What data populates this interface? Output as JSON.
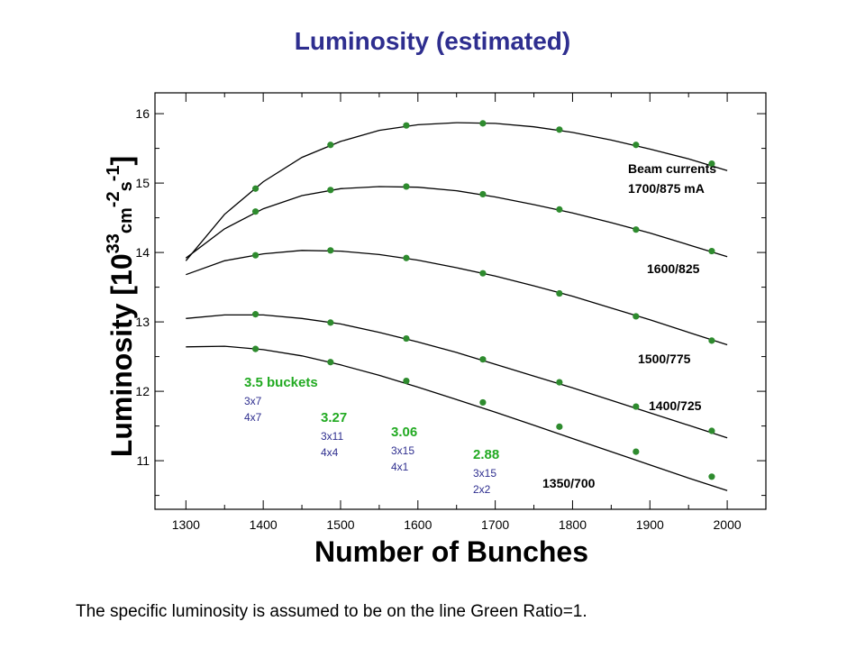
{
  "title": "Luminosity (estimated)",
  "footer": "The specific luminosity is assumed to be on the line Green Ratio=1.",
  "colors": {
    "title": "#2e2e8f",
    "point": "#2e8b2e",
    "curve": "#000000",
    "bucket_value": "#22aa22",
    "bucket_pattern": "#2e2e8f",
    "current_label": "#000000"
  },
  "chart_data": {
    "type": "line",
    "title": "Luminosity (estimated)",
    "xlabel": "Number of Bunches",
    "ylabel_parts": [
      "Luminosity [10",
      "33",
      "cm",
      "-2",
      "s",
      "-1",
      "]"
    ],
    "xlim": [
      1260,
      2050
    ],
    "ylim": [
      10.3,
      16.3
    ],
    "xticks": [
      1300,
      1400,
      1500,
      1600,
      1700,
      1800,
      1900,
      2000
    ],
    "yticks": [
      11,
      12,
      13,
      14,
      15,
      16
    ],
    "grid": false,
    "x": [
      1390,
      1487,
      1585,
      1684,
      1783,
      1882,
      1980
    ],
    "series": [
      {
        "name": "Beam currents 1700/875 mA",
        "values": [
          14.92,
          15.55,
          15.83,
          15.86,
          15.77,
          15.55,
          15.28
        ],
        "curve": [
          [
            1300,
            13.88
          ],
          [
            1350,
            14.55
          ],
          [
            1400,
            15.02
          ],
          [
            1450,
            15.37
          ],
          [
            1500,
            15.6
          ],
          [
            1550,
            15.76
          ],
          [
            1600,
            15.84
          ],
          [
            1650,
            15.87
          ],
          [
            1700,
            15.86
          ],
          [
            1750,
            15.81
          ],
          [
            1800,
            15.73
          ],
          [
            1850,
            15.62
          ],
          [
            1900,
            15.49
          ],
          [
            1950,
            15.35
          ],
          [
            2000,
            15.18
          ]
        ]
      },
      {
        "name": "1600/825",
        "values": [
          14.59,
          14.9,
          14.95,
          14.84,
          14.62,
          14.33,
          14.02
        ],
        "curve": [
          [
            1300,
            13.92
          ],
          [
            1350,
            14.34
          ],
          [
            1400,
            14.63
          ],
          [
            1450,
            14.82
          ],
          [
            1500,
            14.92
          ],
          [
            1550,
            14.95
          ],
          [
            1600,
            14.94
          ],
          [
            1650,
            14.89
          ],
          [
            1700,
            14.8
          ],
          [
            1750,
            14.69
          ],
          [
            1800,
            14.57
          ],
          [
            1850,
            14.43
          ],
          [
            1900,
            14.28
          ],
          [
            1950,
            14.11
          ],
          [
            2000,
            13.94
          ]
        ]
      },
      {
        "name": "1500/775",
        "values": [
          13.96,
          14.03,
          13.92,
          13.7,
          13.41,
          13.08,
          12.73
        ],
        "curve": [
          [
            1300,
            13.68
          ],
          [
            1350,
            13.88
          ],
          [
            1400,
            13.98
          ],
          [
            1450,
            14.03
          ],
          [
            1500,
            14.02
          ],
          [
            1550,
            13.97
          ],
          [
            1600,
            13.89
          ],
          [
            1650,
            13.78
          ],
          [
            1700,
            13.66
          ],
          [
            1750,
            13.52
          ],
          [
            1800,
            13.37
          ],
          [
            1850,
            13.2
          ],
          [
            1900,
            13.03
          ],
          [
            1950,
            12.85
          ],
          [
            2000,
            12.67
          ]
        ]
      },
      {
        "name": "1400/725",
        "values": [
          13.11,
          12.99,
          12.76,
          12.46,
          12.13,
          11.78,
          11.43
        ],
        "curve": [
          [
            1300,
            13.05
          ],
          [
            1350,
            13.1
          ],
          [
            1400,
            13.1
          ],
          [
            1450,
            13.05
          ],
          [
            1500,
            12.97
          ],
          [
            1550,
            12.85
          ],
          [
            1600,
            12.71
          ],
          [
            1650,
            12.56
          ],
          [
            1700,
            12.39
          ],
          [
            1750,
            12.22
          ],
          [
            1800,
            12.05
          ],
          [
            1850,
            11.87
          ],
          [
            1900,
            11.69
          ],
          [
            1950,
            11.51
          ],
          [
            2000,
            11.33
          ]
        ]
      },
      {
        "name": "1350/700",
        "values": [
          12.61,
          12.42,
          12.15,
          11.84,
          11.49,
          11.13,
          10.77
        ],
        "curve": [
          [
            1300,
            12.64
          ],
          [
            1350,
            12.65
          ],
          [
            1400,
            12.6
          ],
          [
            1450,
            12.51
          ],
          [
            1500,
            12.38
          ],
          [
            1550,
            12.23
          ],
          [
            1600,
            12.06
          ],
          [
            1650,
            11.88
          ],
          [
            1700,
            11.7
          ],
          [
            1750,
            11.51
          ],
          [
            1800,
            11.32
          ],
          [
            1850,
            11.13
          ],
          [
            1900,
            10.94
          ],
          [
            1950,
            10.75
          ],
          [
            2000,
            10.57
          ]
        ]
      }
    ],
    "annotations": {
      "currents": [
        {
          "lines": [
            "Beam currents",
            "1700/875 mA"
          ]
        },
        {
          "lines": [
            "1600/825"
          ]
        },
        {
          "lines": [
            "1500/775"
          ]
        },
        {
          "lines": [
            "1400/725"
          ]
        },
        {
          "lines": [
            "1350/700"
          ]
        }
      ],
      "buckets": [
        {
          "value": "3.5 buckets",
          "patterns": [
            "3x7",
            "4x7"
          ]
        },
        {
          "value": "3.27",
          "patterns": [
            "3x11",
            "4x4"
          ]
        },
        {
          "value": "3.06",
          "patterns": [
            "3x15",
            "4x1"
          ]
        },
        {
          "value": "2.88",
          "patterns": [
            "3x15",
            "2x2"
          ]
        }
      ]
    }
  }
}
